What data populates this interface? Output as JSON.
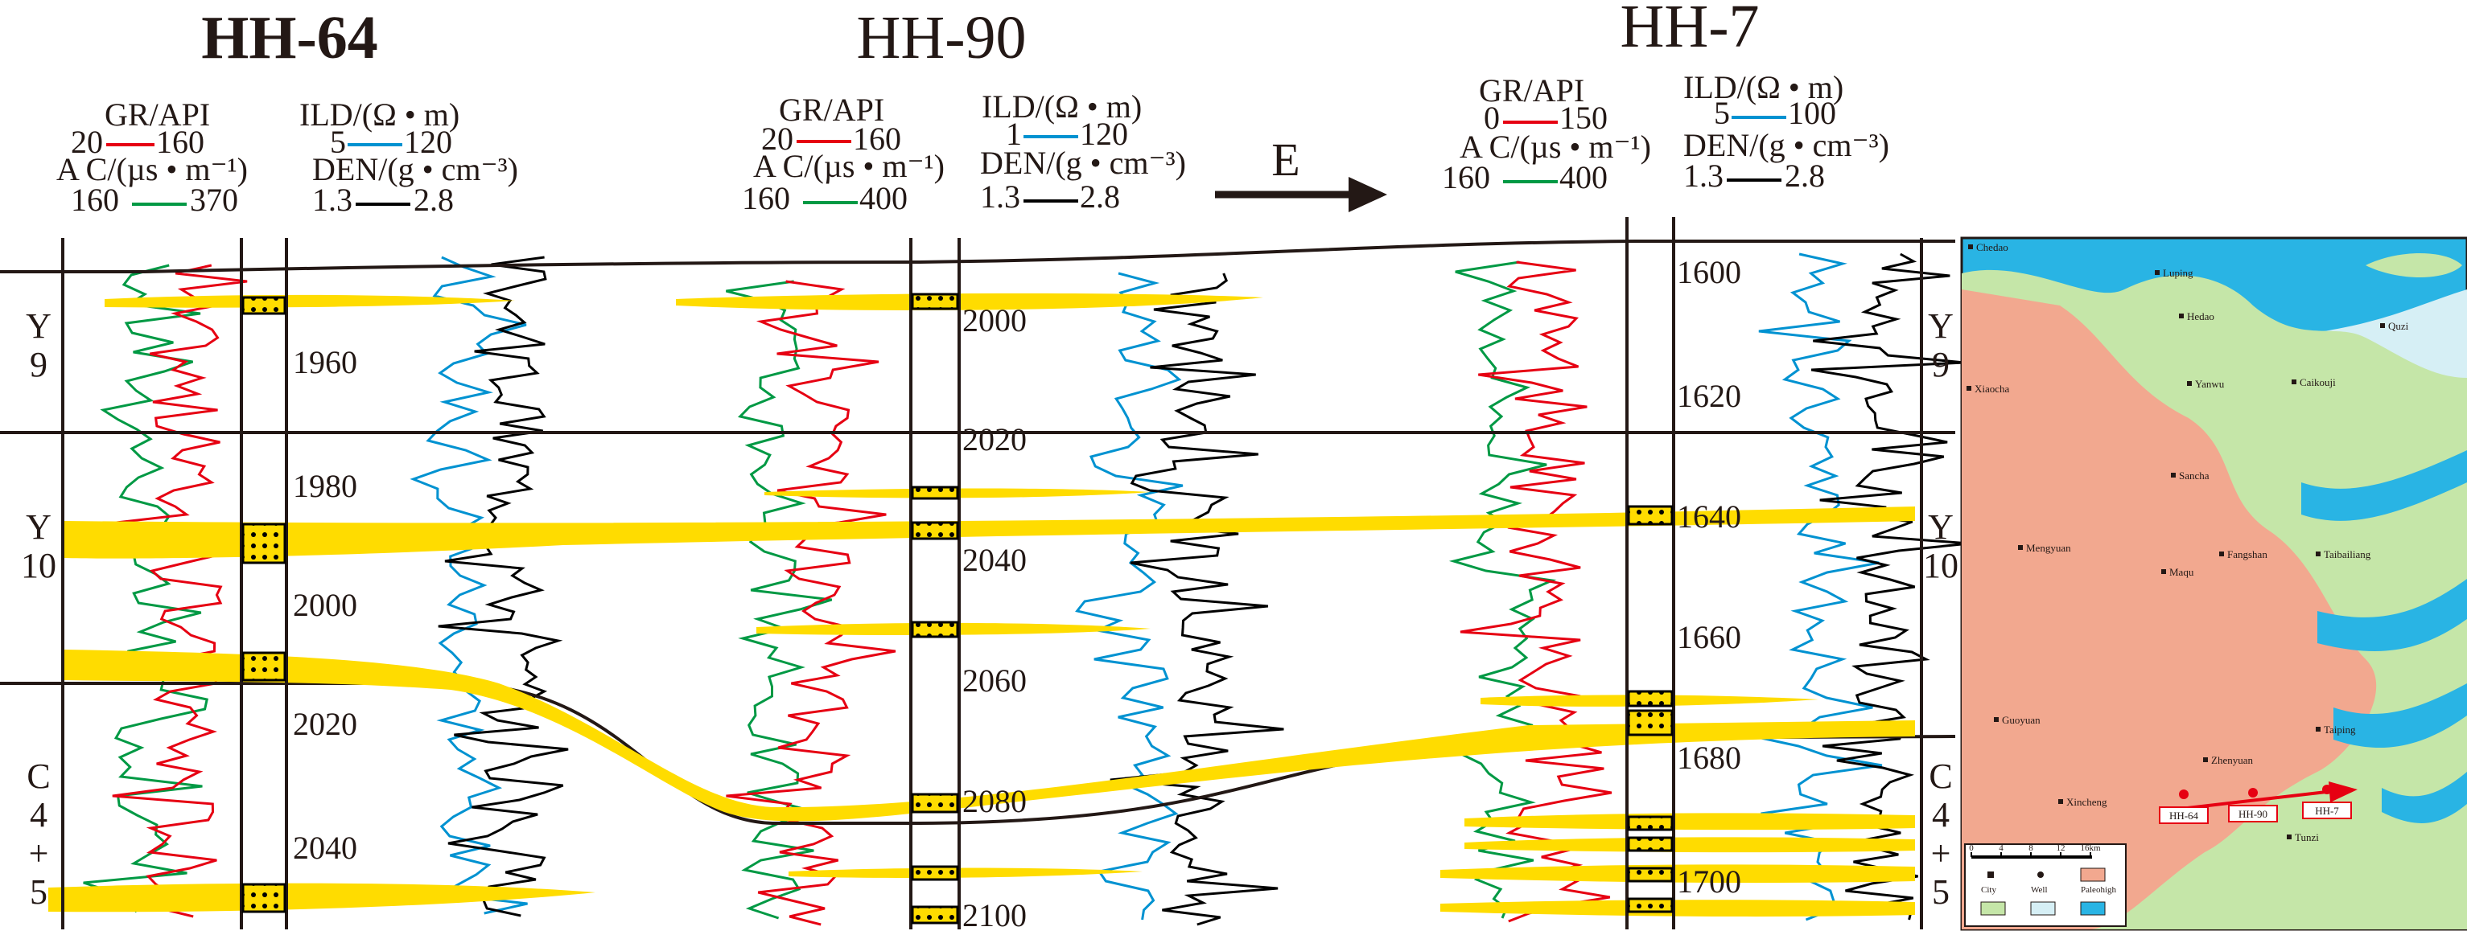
{
  "direction_label": "E",
  "zones": [
    {
      "name": "Y\n9"
    },
    {
      "name": "Y\n10"
    },
    {
      "name": "C\n4\n+\n5"
    }
  ],
  "wells": [
    {
      "id": "HH-64",
      "gr": {
        "label": "GR/API",
        "min": "20",
        "max": "160"
      },
      "ac": {
        "label": "A C/(µs • m⁻¹)",
        "min": "160",
        "max": "370"
      },
      "ild": {
        "label": "ILD/(Ω • m)",
        "min": "5",
        "max": "120"
      },
      "den": {
        "label": "DEN/(g • cm⁻³)",
        "min": "1.3",
        "max": "2.8"
      },
      "depths": [
        "1960",
        "1980",
        "2000",
        "2020",
        "2040"
      ]
    },
    {
      "id": "HH-90",
      "gr": {
        "label": "GR/API",
        "min": "20",
        "max": "160"
      },
      "ac": {
        "label": "A C/(µs • m⁻¹)",
        "min": "160",
        "max": "400"
      },
      "ild": {
        "label": "ILD/(Ω • m)",
        "min": "1",
        "max": "120"
      },
      "den": {
        "label": "DEN/(g • cm⁻³)",
        "min": "1.3",
        "max": "2.8"
      },
      "depths": [
        "2000",
        "2020",
        "2040",
        "2060",
        "2080",
        "2100"
      ]
    },
    {
      "id": "HH-7",
      "gr": {
        "label": "GR/API",
        "min": "0",
        "max": "150"
      },
      "ac": {
        "label": "A C/(µs • m⁻¹)",
        "min": "160",
        "max": "400"
      },
      "ild": {
        "label": "ILD/(Ω • m)",
        "min": "5",
        "max": "100"
      },
      "den": {
        "label": "DEN/(g • cm⁻³)",
        "min": "1.3",
        "max": "2.8"
      },
      "depths": [
        "1600",
        "1620",
        "1640",
        "1660",
        "1680",
        "1700"
      ]
    }
  ],
  "map": {
    "places": [
      "Chedao",
      "Luping",
      "Hedao",
      "Quzi",
      "Xiaocha",
      "Yanwu",
      "Caikouji",
      "Sancha",
      "Mengyuan",
      "Maqu",
      "Fangshan",
      "Taibailiang",
      "Guoyuan",
      "Zhenyuan",
      "Taiping",
      "Xincheng",
      "Tunzi"
    ],
    "well_tags": [
      "HH-64",
      "HH-90",
      "HH-7"
    ],
    "scale": {
      "ticks": [
        "0",
        "4",
        "8",
        "12",
        "16km"
      ]
    },
    "legend": [
      "City",
      "Well",
      "Paleohigh"
    ],
    "colors": {
      "highland": "#f2a88f",
      "slope": "#c5e6a8",
      "shelf": "#d6eff5",
      "water": "#29b4e4",
      "arrow": "#e60012"
    }
  },
  "colors": {
    "gr": "#e60012",
    "ac": "#009944",
    "ild": "#0092d1",
    "den": "#000000",
    "sand": "#ffdc00"
  }
}
